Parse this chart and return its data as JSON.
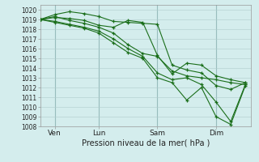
{
  "xlabel": "Pression niveau de la mer( hPa )",
  "ylim": [
    1008,
    1020.5
  ],
  "yticks": [
    1008,
    1009,
    1010,
    1011,
    1012,
    1013,
    1014,
    1015,
    1016,
    1017,
    1018,
    1019,
    1020
  ],
  "xlim": [
    0,
    7.2
  ],
  "xtick_positions": [
    0.5,
    2.0,
    4.0,
    6.0
  ],
  "xtick_labels": [
    "Ven",
    "Lun",
    "Sam",
    "Dim"
  ],
  "vline_positions": [
    0.5,
    2.0,
    4.0,
    6.0
  ],
  "bg_color": "#d4eded",
  "grid_color": "#b0cccc",
  "line_color": "#1a6e1a",
  "lines": [
    {
      "x": [
        0.0,
        0.5,
        1.0,
        1.5,
        2.0,
        2.5,
        3.0,
        3.5,
        4.0,
        4.5,
        5.0,
        5.5,
        6.0,
        6.5,
        7.0
      ],
      "y": [
        1019.0,
        1019.3,
        1018.9,
        1018.6,
        1018.2,
        1017.6,
        1016.4,
        1015.5,
        1015.2,
        1013.7,
        1013.2,
        1013.0,
        1012.8,
        1012.5,
        1012.3
      ]
    },
    {
      "x": [
        0.0,
        0.5,
        1.0,
        1.5,
        2.0,
        2.5,
        3.0,
        3.5,
        4.0,
        4.5,
        5.0,
        5.5,
        6.0,
        6.5,
        7.0
      ],
      "y": [
        1019.0,
        1019.5,
        1019.8,
        1019.6,
        1019.3,
        1018.8,
        1018.7,
        1018.6,
        1018.5,
        1014.3,
        1013.8,
        1013.5,
        1012.2,
        1011.8,
        1012.5
      ]
    },
    {
      "x": [
        0.0,
        0.5,
        1.0,
        1.5,
        2.0,
        2.5,
        3.0,
        3.5,
        4.0,
        4.5,
        5.0,
        5.5,
        6.0,
        6.5,
        7.0
      ],
      "y": [
        1019.0,
        1019.2,
        1019.1,
        1018.9,
        1018.4,
        1018.2,
        1018.9,
        1018.7,
        1015.3,
        1013.4,
        1014.5,
        1014.3,
        1013.2,
        1012.8,
        1012.5
      ]
    },
    {
      "x": [
        0.0,
        0.5,
        1.0,
        1.5,
        2.0,
        2.5,
        3.0,
        3.5,
        4.0,
        4.5,
        5.0,
        5.5,
        6.0,
        6.5,
        7.0
      ],
      "y": [
        1019.0,
        1018.8,
        1018.5,
        1018.2,
        1017.8,
        1017.0,
        1016.0,
        1015.2,
        1013.5,
        1012.8,
        1013.0,
        1012.3,
        1010.5,
        1008.5,
        1012.3
      ]
    },
    {
      "x": [
        0.0,
        0.5,
        1.0,
        1.5,
        2.0,
        2.5,
        3.0,
        3.5,
        4.0,
        4.5,
        5.0,
        5.5,
        6.0,
        6.5,
        7.0
      ],
      "y": [
        1019.0,
        1018.7,
        1018.4,
        1018.1,
        1017.6,
        1016.6,
        1015.6,
        1015.0,
        1013.0,
        1012.5,
        1010.7,
        1012.0,
        1009.0,
        1008.2,
        1012.2
      ]
    }
  ]
}
